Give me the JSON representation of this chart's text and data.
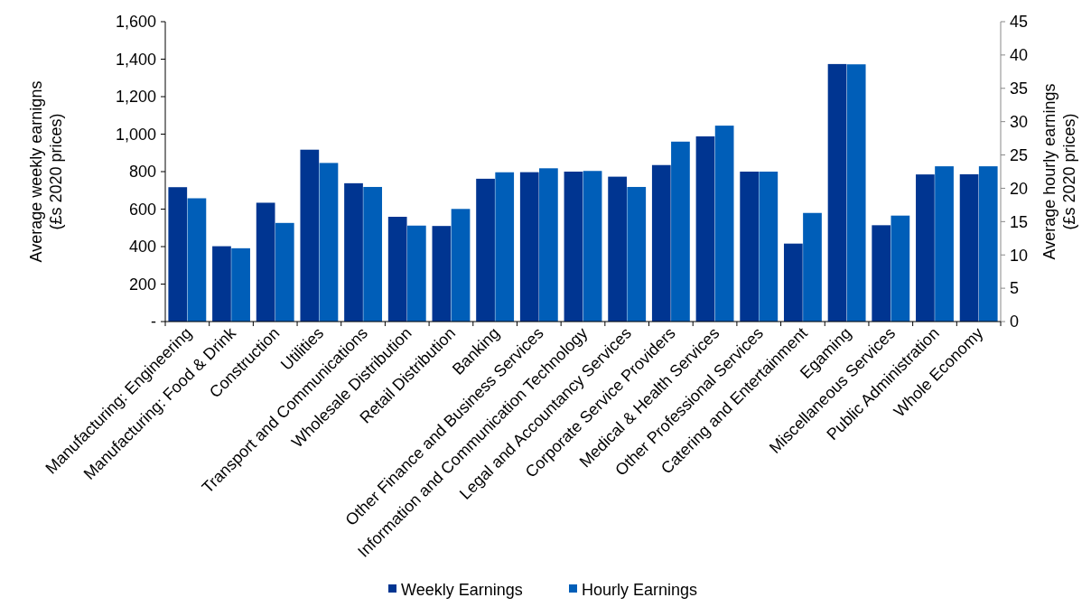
{
  "chart_data": {
    "type": "bar",
    "categories": [
      "Manufacturing: Engineering",
      "Manufacturing: Food & Drink",
      "Construction",
      "Utilities",
      "Transport and Communications",
      "Wholesale Distribution",
      "Retail Distribution",
      "Banking",
      "Other Finance and Business Services",
      "Information and Communication Technology",
      "Legal and Accountancy Services",
      "Corporate Service Providers",
      "Medical & Health Services",
      "Other Professional Services",
      "Catering and Entertainment",
      "Egaming",
      "Miscellaneous Services",
      "Public Administration",
      "Whole Economy"
    ],
    "series": [
      {
        "name": "Weekly Earnings",
        "color": "#003591",
        "values": [
          717,
          402,
          634,
          917,
          738,
          559,
          510,
          762,
          797,
          800,
          773,
          835,
          988,
          800,
          416,
          1374,
          514,
          785,
          786
        ]
      },
      {
        "name": "Hourly Earnings",
        "color": "#005eb8",
        "axis": "y2",
        "values": [
          18.5,
          11.0,
          14.8,
          23.8,
          20.2,
          14.4,
          16.9,
          22.4,
          23.0,
          22.6,
          20.2,
          27.0,
          29.4,
          22.5,
          16.3,
          38.6,
          15.9,
          23.3,
          23.3
        ]
      }
    ],
    "ylabel": "Average weekly earnigns\n(£s 2020 prices)",
    "y2label": "Average hourly earnings\n(£s 2020 prices)",
    "ylim": [
      0,
      1600
    ],
    "yticks": [
      {
        "value": 0,
        "label": "-"
      },
      {
        "value": 200,
        "label": "200"
      },
      {
        "value": 400,
        "label": "400"
      },
      {
        "value": 600,
        "label": "600"
      },
      {
        "value": 800,
        "label": "800"
      },
      {
        "value": 1000,
        "label": "1,000"
      },
      {
        "value": 1200,
        "label": "1,200"
      },
      {
        "value": 1400,
        "label": "1,400"
      },
      {
        "value": 1600,
        "label": "1,600"
      }
    ],
    "y2lim": [
      0,
      45
    ],
    "y2ticks": [
      0,
      5,
      10,
      15,
      20,
      25,
      30,
      35,
      40,
      45
    ],
    "legend": "bottom",
    "grid": false
  }
}
